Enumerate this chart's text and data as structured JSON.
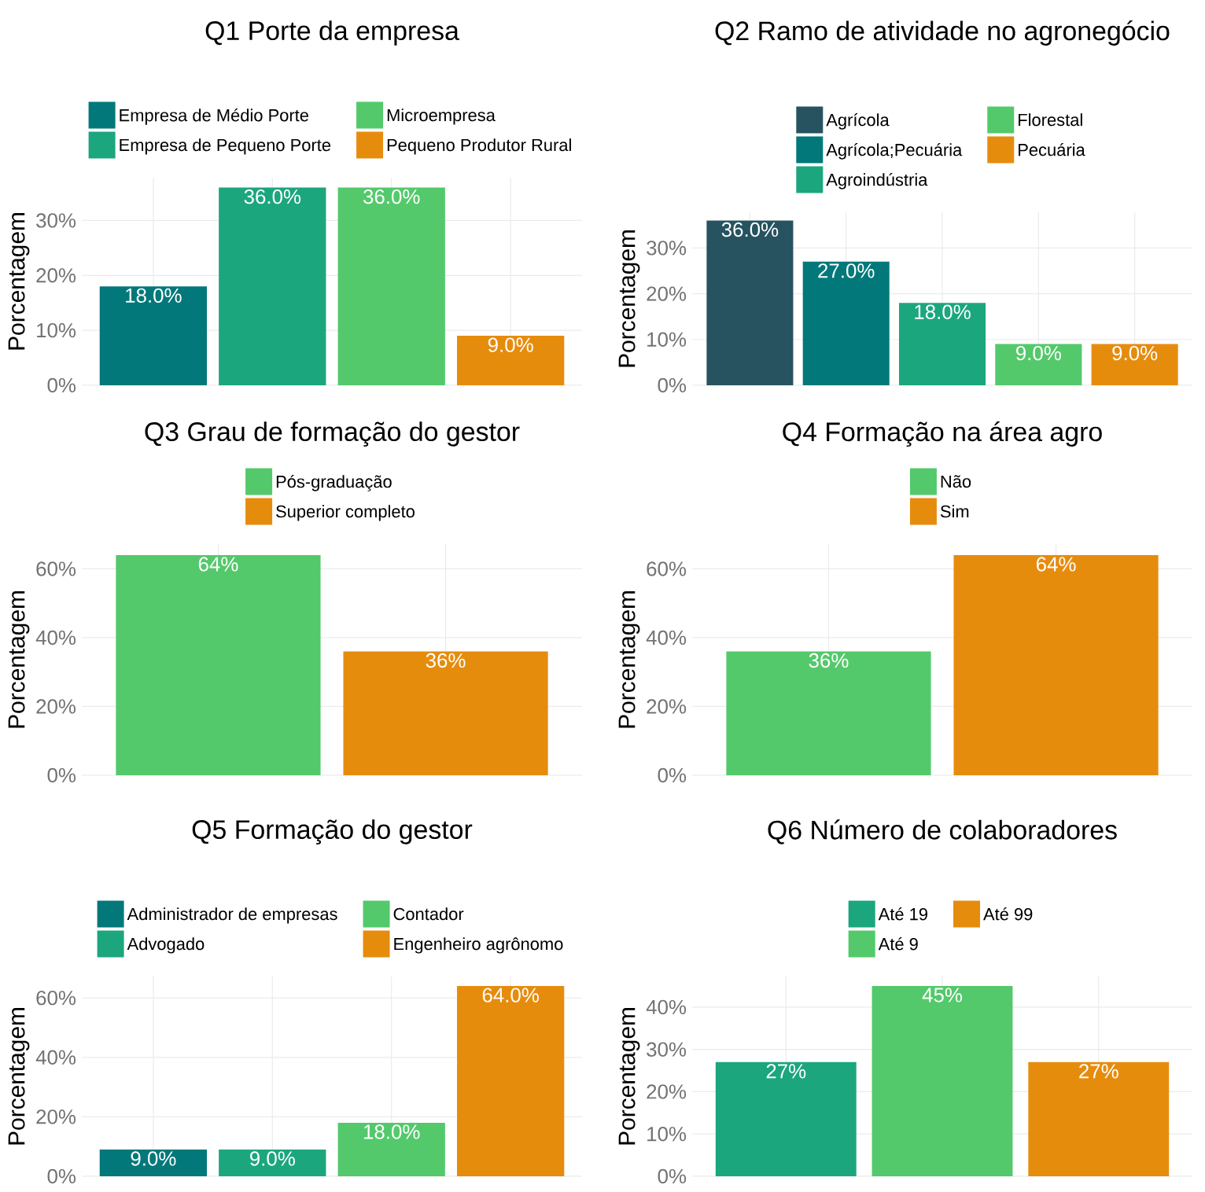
{
  "chart_data": [
    {
      "type": "bar",
      "title": "Q1 Porte da empresa",
      "ylabel": "Porcentagem",
      "categories": [
        null,
        null,
        null,
        null
      ],
      "ylim": [
        0,
        37.8
      ],
      "yticks": [
        {
          "value": 0,
          "label": "0%"
        },
        {
          "value": 10,
          "label": "10%"
        },
        {
          "value": 20,
          "label": "20%"
        },
        {
          "value": 30,
          "label": "30%"
        }
      ],
      "grid": true,
      "legend": "top",
      "tick_labels": "y",
      "series": [
        {
          "name": "Empresa de Médio Porte",
          "color": "#03787a",
          "values": [
            18,
            null,
            null,
            null
          ],
          "value_labels": [
            "18.0%",
            null,
            null,
            null
          ]
        },
        {
          "name": "Empresa de Pequeno Porte",
          "color": "#1ba67e",
          "values": [
            null,
            36,
            null,
            null
          ],
          "value_labels": [
            null,
            "36.0%",
            null,
            null
          ]
        },
        {
          "name": "Microempresa",
          "color": "#53c96b",
          "values": [
            null,
            null,
            36,
            null
          ],
          "value_labels": [
            null,
            null,
            "36.0%",
            null
          ]
        },
        {
          "name": "Pequeno Produtor Rural",
          "color": "#e68c0d",
          "values": [
            null,
            null,
            null,
            9
          ],
          "value_labels": [
            null,
            null,
            null,
            "9.0%"
          ]
        }
      ]
    },
    {
      "type": "bar",
      "title": "Q2 Ramo de atividade no agronegócio",
      "ylabel": "Porcentagem",
      "categories": [
        null,
        null,
        null,
        null,
        null
      ],
      "ylim": [
        0,
        37.8
      ],
      "yticks": [
        {
          "value": 0,
          "label": "0%"
        },
        {
          "value": 10,
          "label": "10%"
        },
        {
          "value": 20,
          "label": "20%"
        },
        {
          "value": 30,
          "label": "30%"
        }
      ],
      "grid": true,
      "legend": "top",
      "tick_labels": "y",
      "series": [
        {
          "name": "Agrícola",
          "color": "#26535f",
          "values": [
            36,
            null,
            null,
            null,
            null
          ],
          "value_labels": [
            "36.0%",
            null,
            null,
            null,
            null
          ]
        },
        {
          "name": "Agrícola;Pecuária",
          "color": "#03787a",
          "values": [
            null,
            27,
            null,
            null,
            null
          ],
          "value_labels": [
            null,
            "27.0%",
            null,
            null,
            null
          ]
        },
        {
          "name": "Agroindústria",
          "color": "#1ba67e",
          "values": [
            null,
            null,
            18,
            null,
            null
          ],
          "value_labels": [
            null,
            null,
            "18.0%",
            null,
            null
          ]
        },
        {
          "name": "Florestal",
          "color": "#53c96b",
          "values": [
            null,
            null,
            null,
            9,
            null
          ],
          "value_labels": [
            null,
            null,
            null,
            "9.0%",
            null
          ]
        },
        {
          "name": "Pecuária",
          "color": "#e68c0d",
          "values": [
            null,
            null,
            null,
            null,
            9
          ],
          "value_labels": [
            null,
            null,
            null,
            null,
            "9.0%"
          ]
        }
      ]
    },
    {
      "type": "bar",
      "title": "Q3 Grau de formação do gestor",
      "ylabel": "Porcentagem",
      "categories": [
        null,
        null
      ],
      "ylim": [
        0,
        67.2
      ],
      "yticks": [
        {
          "value": 0,
          "label": "0%"
        },
        {
          "value": 20,
          "label": "20%"
        },
        {
          "value": 40,
          "label": "40%"
        },
        {
          "value": 60,
          "label": "60%"
        }
      ],
      "grid": true,
      "legend": "top",
      "tick_labels": "y",
      "series": [
        {
          "name": "Pós-graduação",
          "color": "#53c96b",
          "values": [
            64,
            null
          ],
          "value_labels": [
            "64%",
            null
          ]
        },
        {
          "name": "Superior completo",
          "color": "#e68c0d",
          "values": [
            null,
            36
          ],
          "value_labels": [
            null,
            "36%"
          ]
        }
      ]
    },
    {
      "type": "bar",
      "title": "Q4 Formação na área agro",
      "ylabel": "Porcentagem",
      "categories": [
        null,
        null
      ],
      "ylim": [
        0,
        67.2
      ],
      "yticks": [
        {
          "value": 0,
          "label": "0%"
        },
        {
          "value": 20,
          "label": "20%"
        },
        {
          "value": 40,
          "label": "40%"
        },
        {
          "value": 60,
          "label": "60%"
        }
      ],
      "grid": true,
      "legend": "top",
      "tick_labels": "y",
      "series": [
        {
          "name": "Não",
          "color": "#53c96b",
          "values": [
            36,
            null
          ],
          "value_labels": [
            "36%",
            null
          ]
        },
        {
          "name": "Sim",
          "color": "#e68c0d",
          "values": [
            null,
            64
          ],
          "value_labels": [
            null,
            "64%"
          ]
        }
      ]
    },
    {
      "type": "bar",
      "title": "Q5 Formação do gestor",
      "ylabel": "Porcentagem",
      "categories": [
        null,
        null,
        null,
        null
      ],
      "ylim": [
        0,
        67.2
      ],
      "yticks": [
        {
          "value": 0,
          "label": "0%"
        },
        {
          "value": 20,
          "label": "20%"
        },
        {
          "value": 40,
          "label": "40%"
        },
        {
          "value": 60,
          "label": "60%"
        }
      ],
      "grid": true,
      "legend": "top",
      "tick_labels": "y",
      "series": [
        {
          "name": "Administrador de empresas",
          "color": "#03787a",
          "values": [
            9,
            null,
            null,
            null
          ],
          "value_labels": [
            "9.0%",
            null,
            null,
            null
          ]
        },
        {
          "name": "Advogado",
          "color": "#1ba67e",
          "values": [
            null,
            9,
            null,
            null
          ],
          "value_labels": [
            null,
            "9.0%",
            null,
            null
          ]
        },
        {
          "name": "Contador",
          "color": "#53c96b",
          "values": [
            null,
            null,
            18,
            null
          ],
          "value_labels": [
            null,
            null,
            "18.0%",
            null
          ]
        },
        {
          "name": "Engenheiro agrônomo",
          "color": "#e68c0d",
          "values": [
            null,
            null,
            null,
            64
          ],
          "value_labels": [
            null,
            null,
            null,
            "64.0%"
          ]
        }
      ]
    },
    {
      "type": "bar",
      "title": "Q6 Número de colaboradores",
      "ylabel": "Porcentagem",
      "categories": [
        null,
        null,
        null
      ],
      "ylim": [
        0,
        47.25
      ],
      "yticks": [
        {
          "value": 0,
          "label": "0%"
        },
        {
          "value": 10,
          "label": "10%"
        },
        {
          "value": 20,
          "label": "20%"
        },
        {
          "value": 30,
          "label": "30%"
        },
        {
          "value": 40,
          "label": "40%"
        }
      ],
      "grid": true,
      "legend": "top",
      "tick_labels": "y",
      "series": [
        {
          "name": "Até 19",
          "color": "#1ba67e",
          "values": [
            27,
            null,
            null
          ],
          "value_labels": [
            "27%",
            null,
            null
          ]
        },
        {
          "name": "Até 9",
          "color": "#53c96b",
          "values": [
            null,
            45,
            null
          ],
          "value_labels": [
            null,
            "45%",
            null
          ]
        },
        {
          "name": "Até 99",
          "color": "#e68c0d",
          "values": [
            null,
            null,
            27
          ],
          "value_labels": [
            null,
            null,
            "27%"
          ]
        }
      ]
    }
  ]
}
